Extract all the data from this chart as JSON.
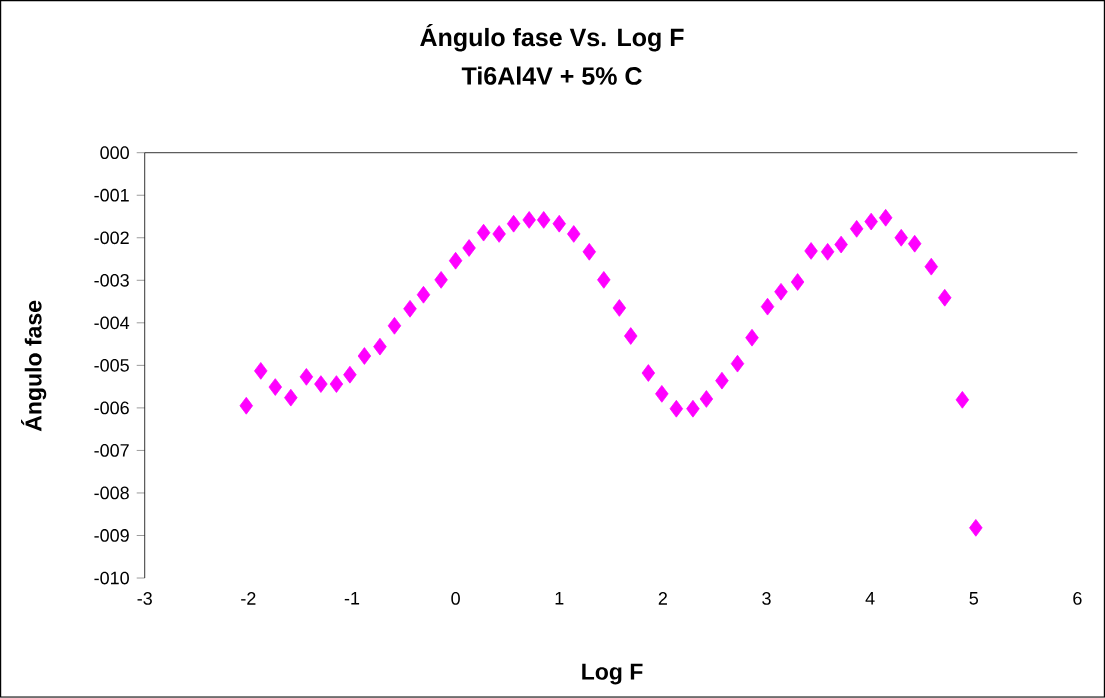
{
  "chart_data": {
    "type": "scatter",
    "title": "Ángulo fase Vs. Log F",
    "subtitle": "Ti6Al4V + 5% C",
    "xlabel": "Log F",
    "ylabel": "Ángulo fase",
    "x": [
      -2.02,
      -1.88,
      -1.74,
      -1.59,
      -1.44,
      -1.3,
      -1.15,
      -1.02,
      -0.88,
      -0.73,
      -0.59,
      -0.44,
      -0.31,
      -0.14,
      0,
      0.13,
      0.27,
      0.42,
      0.56,
      0.71,
      0.85,
      1.0,
      1.14,
      1.29,
      1.43,
      1.58,
      1.69,
      1.86,
      1.99,
      2.13,
      2.29,
      2.42,
      2.57,
      2.72,
      2.86,
      3.01,
      3.14,
      3.3,
      3.43,
      3.59,
      3.72,
      3.87,
      4.01,
      4.15,
      4.3,
      4.43,
      4.59,
      4.72,
      4.89,
      5.02
    ],
    "values": [
      -5.95,
      -5.13,
      -5.51,
      -5.76,
      -5.27,
      -5.44,
      -5.44,
      -5.22,
      -4.78,
      -4.56,
      -4.07,
      -3.67,
      -3.34,
      -2.99,
      -2.54,
      -2.24,
      -1.88,
      -1.91,
      -1.67,
      -1.58,
      -1.58,
      -1.67,
      -1.91,
      -2.33,
      -2.99,
      -3.65,
      -4.31,
      -5.18,
      -5.67,
      -6.02,
      -6.02,
      -5.79,
      -5.36,
      -4.96,
      -4.35,
      -3.62,
      -3.27,
      -3.04,
      -2.31,
      -2.33,
      -2.16,
      -1.79,
      -1.62,
      -1.53,
      -2.0,
      -2.14,
      -2.68,
      -3.41,
      -5.81,
      -8.82
    ],
    "color": "#ff00ff",
    "marker": "diamond",
    "xlim": [
      -3,
      6
    ],
    "xticks": [
      -3,
      -2,
      -1,
      0,
      1,
      2,
      3,
      4,
      5,
      6
    ],
    "ylim": [
      -10,
      0
    ],
    "yticks": [
      {
        "value": 0,
        "label": "000"
      },
      {
        "value": -1,
        "label": "-001"
      },
      {
        "value": -2,
        "label": "-002"
      },
      {
        "value": -3,
        "label": "-003"
      },
      {
        "value": -4,
        "label": "-004"
      },
      {
        "value": -5,
        "label": "-005"
      },
      {
        "value": -6,
        "label": "-006"
      },
      {
        "value": -7,
        "label": "-007"
      },
      {
        "value": -8,
        "label": "-008"
      },
      {
        "value": -9,
        "label": "-009"
      },
      {
        "value": -10,
        "label": "-010"
      }
    ],
    "grid": false
  }
}
